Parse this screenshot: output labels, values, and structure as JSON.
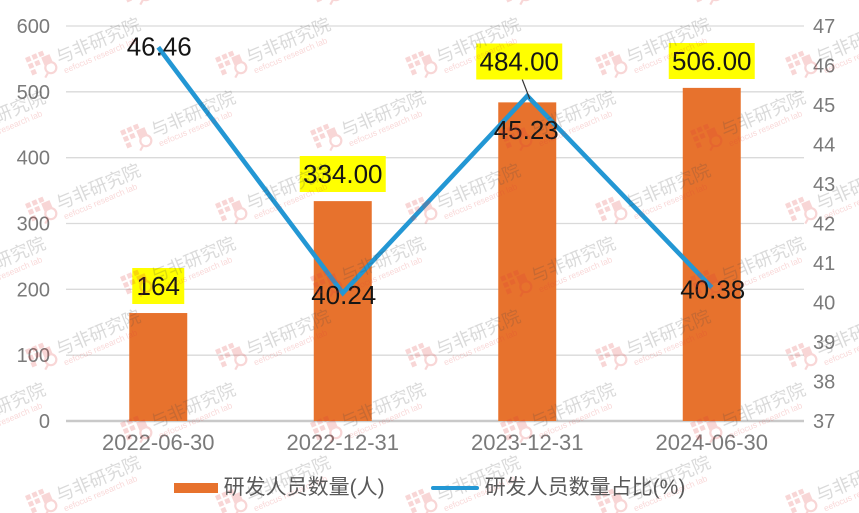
{
  "watermark": {
    "brand": "与非研究院",
    "sub": "eefocus research lab"
  },
  "legend": {
    "items": [
      {
        "label": "研发人员数量(人)",
        "type": "bar",
        "color": "#E7722D"
      },
      {
        "label": "研发人员数量占比(%)",
        "type": "line",
        "color": "#2397D4"
      }
    ]
  },
  "palette": {
    "bar": "#E7722D",
    "line": "#2397D4",
    "label_bg": "#FFFF00",
    "label_text": "#151515",
    "axis_text": "#7A7A7A",
    "grid": "#DADADA",
    "axis_line": "#C9C9C9",
    "legend_text": "#595959",
    "watermark_red": "#E03A3A",
    "watermark_gray": "#4A4A4A",
    "background": "#FFFFFF"
  },
  "chart_data": {
    "type": "combo",
    "categories": [
      "2022-06-30",
      "2022-12-31",
      "2023-12-31",
      "2024-06-30"
    ],
    "series": [
      {
        "name": "研发人员数量(人)",
        "type": "bar",
        "axis": "left",
        "color": "#E7722D",
        "values": [
          164,
          334,
          484,
          506
        ],
        "labels": [
          "164",
          "334.00",
          "484.00",
          "506.00"
        ],
        "label_bg": "#FFFF00"
      },
      {
        "name": "研发人员数量占比(%)",
        "type": "line",
        "axis": "right",
        "color": "#2397D4",
        "values": [
          46.46,
          40.24,
          45.23,
          40.38
        ],
        "labels": [
          "46.46",
          "40.24",
          "45.23",
          "40.38"
        ]
      }
    ],
    "left_axis": {
      "min": 0,
      "max": 600,
      "step": 100,
      "ticks": [
        "0",
        "100",
        "200",
        "300",
        "400",
        "500",
        "600"
      ]
    },
    "right_axis": {
      "min": 37,
      "max": 47,
      "step": 1,
      "ticks": [
        "37",
        "38",
        "39",
        "40",
        "41",
        "42",
        "43",
        "44",
        "45",
        "46",
        "47"
      ]
    },
    "grid": true,
    "legend_position": "bottom",
    "title": "",
    "xlabel": "",
    "ylabel": ""
  }
}
